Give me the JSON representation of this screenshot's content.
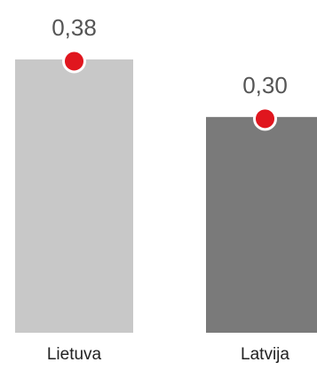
{
  "chart_data": {
    "type": "bar",
    "categories": [
      "Lietuva",
      "Latvija"
    ],
    "values": [
      0.38,
      0.3
    ],
    "value_labels": [
      "0,38",
      "0,30"
    ],
    "bar_colors": [
      "#c8c8c8",
      "#7a7a7a"
    ],
    "marker_color": "#e0161e",
    "ylim": [
      0,
      0.38
    ],
    "title": "",
    "xlabel": "",
    "ylabel": ""
  }
}
